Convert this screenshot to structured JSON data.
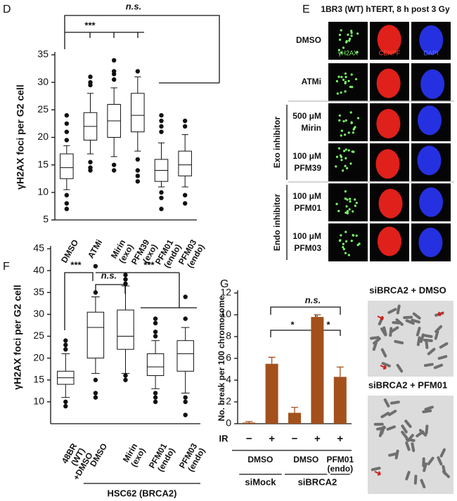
{
  "chart_data": [
    {
      "type": "box",
      "panel": "D",
      "ylabel": "γH2AX foci per G2 cell",
      "categories": [
        "DMSO",
        "ATMi",
        "Mirin (exo)",
        "PFM39 (exo)",
        "PFM01 (endo)",
        "PFM03 (endo)"
      ],
      "boxes": [
        {
          "low": 10.5,
          "q1": 12.5,
          "median": 14.5,
          "q3": 17,
          "high": 18.5,
          "outliers": [
            19.5,
            21,
            22.5,
            24,
            9.5,
            8,
            7
          ]
        },
        {
          "low": 17,
          "q1": 19.5,
          "median": 22,
          "q3": 24.5,
          "high": 28,
          "outliers": [
            29.5,
            30,
            31,
            15.5,
            14.5,
            14
          ]
        },
        {
          "low": 16.5,
          "q1": 20,
          "median": 23,
          "q3": 26,
          "high": 29,
          "outliers": [
            30.5,
            31.5,
            32,
            34,
            15,
            14
          ]
        },
        {
          "low": 17.5,
          "q1": 21,
          "median": 24,
          "q3": 28,
          "high": 31,
          "outliers": [
            32,
            16,
            14,
            13,
            12
          ]
        },
        {
          "low": 11,
          "q1": 12,
          "median": 14,
          "q3": 16,
          "high": 19,
          "outliers": [
            21,
            22,
            23,
            24,
            10,
            9,
            7
          ]
        },
        {
          "low": 11,
          "q1": 13,
          "median": 15,
          "q3": 17.5,
          "high": 20.5,
          "outliers": [
            22,
            23,
            9.5,
            8
          ]
        }
      ],
      "ylim": [
        5,
        35
      ],
      "yticks": [
        5,
        10,
        15,
        20,
        25,
        30,
        35
      ],
      "annotations": [
        "n.s.",
        "***"
      ]
    },
    {
      "type": "box",
      "panel": "F",
      "ylabel": "γH2AX foci per G2 cell",
      "categories": [
        "48BR (WT) +DMSO",
        "DMSO",
        "Mirin (exo)",
        "PFM01 (endo)",
        "PFM03 (endo)"
      ],
      "boxes": [
        {
          "low": 11,
          "q1": 14,
          "median": 15.5,
          "q3": 17,
          "high": 21,
          "outliers": [
            22,
            23,
            24,
            10,
            9
          ]
        },
        {
          "low": 16.5,
          "q1": 20,
          "median": 27,
          "q3": 30.5,
          "high": 34,
          "outliers": [
            35,
            41,
            15,
            12,
            11
          ]
        },
        {
          "low": 16.5,
          "q1": 22,
          "median": 25,
          "q3": 31,
          "high": 36.5,
          "outliers": [
            37,
            38,
            39,
            16,
            15
          ]
        },
        {
          "low": 13,
          "q1": 16,
          "median": 18,
          "q3": 21,
          "high": 24,
          "outliers": [
            25,
            26,
            28,
            29,
            12,
            11,
            10
          ]
        },
        {
          "low": 12,
          "q1": 17,
          "median": 21,
          "q3": 24,
          "high": 27,
          "outliers": [
            29,
            34,
            11,
            10,
            7
          ]
        }
      ],
      "ylim": [
        5,
        45
      ],
      "yticks": [
        10,
        15,
        20,
        25,
        30,
        35,
        40,
        45
      ],
      "group_label": "HSC62 (BRCA2)",
      "annotations": [
        "***",
        "n.s.",
        "***"
      ]
    },
    {
      "type": "bar",
      "panel": "G",
      "ylabel": "No. break per 100 chromosome",
      "ir_label": "IR",
      "categories": [
        "−",
        "+",
        "−",
        "+",
        "+"
      ],
      "values": [
        0.1,
        5.5,
        1.0,
        9.8,
        4.3
      ],
      "errors": [
        0.1,
        0.6,
        0.5,
        0.2,
        0.9
      ],
      "color": "#a3501c",
      "treatments": [
        "DMSO",
        "DMSO",
        "PFM01 (endo)"
      ],
      "sirnas": [
        "siMock",
        "siBRCA2"
      ],
      "ylim": [
        0,
        12
      ],
      "yticks": [
        0,
        2,
        4,
        6,
        8,
        10,
        12
      ],
      "annotations": [
        "n.s.",
        "*",
        "*"
      ]
    }
  ],
  "micrographs": {
    "panel": "E",
    "title": "1BR3 (WT) hTERT, 8 h post 3 Gy",
    "channels": [
      "γH2AX",
      "CENPF",
      "DAPI"
    ],
    "rows": [
      {
        "drug": "DMSO"
      },
      {
        "drug": "ATMi"
      },
      {
        "dose": "500 μM",
        "drug": "Mirin"
      },
      {
        "dose": "100 μM",
        "drug": "PFM39"
      },
      {
        "dose": "100 μM",
        "drug": "PFM01"
      },
      {
        "dose": "100 μM",
        "drug": "PFM03"
      }
    ],
    "groups": [
      "Exo inhibitor",
      "Endo inhibitor"
    ]
  },
  "metaphases": {
    "labels": [
      "siBRCA2 + DMSO",
      "siBRCA2 + PFM01"
    ]
  }
}
